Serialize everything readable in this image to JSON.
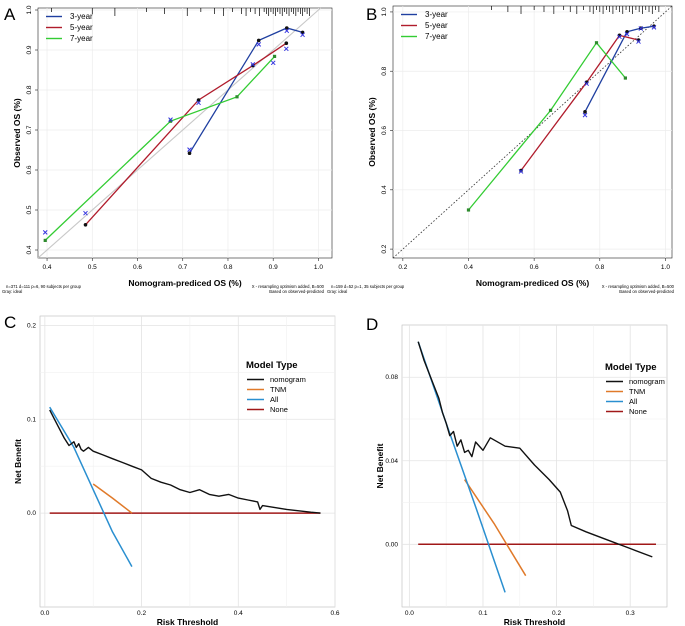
{
  "panels": {
    "A": {
      "label": "A",
      "note_left": "n=371 d=111 p=6, 90 subjects per group",
      "note_left2": "Gray: ideal",
      "note_right": "X - resampling optimism added, B=500",
      "note_right2": "Based on observed-predicted"
    },
    "B": {
      "label": "B",
      "note_left": "n=159 d=52 p=1, 35 subjects per group",
      "note_left2": "Gray: ideal",
      "note_right": "X - resampling optimism added, B=500",
      "note_right2": "Based on observed-predicted"
    },
    "C": {
      "label": "C"
    },
    "D": {
      "label": "D"
    }
  },
  "colors": {
    "y3": "#1f3fa0",
    "y5": "#b01c2c",
    "y7": "#33cc33",
    "nomogram": "#111111",
    "tnm": "#e07a2a",
    "all": "#2a8fd0",
    "none": "#a01818",
    "cross": "#3535e0",
    "ideal": "#c8c8c8",
    "grid": "#e3e3e3"
  },
  "chart_data": [
    {
      "panel": "A",
      "type": "line",
      "title": "",
      "xlabel": "Nomogram-prediced OS (%)",
      "ylabel": "Observed OS (%)",
      "xlim": [
        0.38,
        1.03
      ],
      "ylim": [
        0.38,
        1.005
      ],
      "xticks": [
        0.4,
        0.5,
        0.6,
        0.7,
        0.8,
        0.9,
        1.0
      ],
      "yticks": [
        0.4,
        0.5,
        0.6,
        0.7,
        0.8,
        0.9,
        1.0
      ],
      "legend": [
        "3-year",
        "5-year",
        "7-year"
      ],
      "legend_position": "top-left",
      "ideal_line": "solid-gray",
      "series": [
        {
          "name": "3-year",
          "color_key": "y3",
          "x": [
            0.715,
            0.868,
            0.93,
            0.965
          ],
          "y": [
            0.642,
            0.924,
            0.955,
            0.944
          ]
        },
        {
          "name": "5-year",
          "color_key": "y5",
          "x": [
            0.485,
            0.735,
            0.855,
            0.929
          ],
          "y": [
            0.463,
            0.775,
            0.861,
            0.917
          ]
        },
        {
          "name": "7-year",
          "color_key": "y7",
          "x": [
            0.396,
            0.673,
            0.82,
            0.903
          ],
          "y": [
            0.424,
            0.722,
            0.783,
            0.884
          ]
        }
      ],
      "crosses": [
        [
          0.396,
          0.444
        ],
        [
          0.485,
          0.492
        ],
        [
          0.673,
          0.726
        ],
        [
          0.715,
          0.651
        ],
        [
          0.735,
          0.768
        ],
        [
          0.855,
          0.864
        ],
        [
          0.868,
          0.914
        ],
        [
          0.9,
          0.868
        ],
        [
          0.929,
          0.903
        ],
        [
          0.93,
          0.948
        ],
        [
          0.965,
          0.938
        ]
      ],
      "rug": [
        0.41,
        0.5,
        0.55,
        0.62,
        0.66,
        0.71,
        0.74,
        0.77,
        0.79,
        0.81,
        0.83,
        0.84,
        0.85,
        0.86,
        0.87,
        0.88,
        0.885,
        0.89,
        0.895,
        0.9,
        0.905,
        0.91,
        0.915,
        0.92,
        0.925,
        0.93,
        0.935,
        0.94,
        0.945,
        0.95,
        0.955,
        0.96,
        0.965,
        0.97,
        0.975,
        0.98
      ]
    },
    {
      "panel": "B",
      "type": "line",
      "title": "",
      "xlabel": "Nomogram-prediced OS (%)",
      "ylabel": "Observed OS (%)",
      "xlim": [
        0.17,
        1.02
      ],
      "ylim": [
        0.17,
        1.02
      ],
      "xticks": [
        0.2,
        0.4,
        0.6,
        0.8,
        1.0
      ],
      "yticks": [
        0.2,
        0.4,
        0.6,
        0.8,
        1.0
      ],
      "legend": [
        "3-year",
        "5-year",
        "7-year"
      ],
      "legend_position": "top-left",
      "ideal_line": "dotted",
      "series": [
        {
          "name": "3-year",
          "color_key": "y3",
          "x": [
            0.755,
            0.883,
            0.925,
            0.965
          ],
          "y": [
            0.663,
            0.933,
            0.945,
            0.952
          ]
        },
        {
          "name": "5-year",
          "color_key": "y5",
          "x": [
            0.56,
            0.76,
            0.86,
            0.918
          ],
          "y": [
            0.465,
            0.763,
            0.921,
            0.905
          ]
        },
        {
          "name": "7-year",
          "color_key": "y7",
          "x": [
            0.4,
            0.65,
            0.79,
            0.878
          ],
          "y": [
            0.332,
            0.668,
            0.896,
            0.777
          ]
        }
      ],
      "crosses": [
        [
          0.56,
          0.462
        ],
        [
          0.755,
          0.652
        ],
        [
          0.76,
          0.758
        ],
        [
          0.86,
          0.916
        ],
        [
          0.883,
          0.925
        ],
        [
          0.918,
          0.9
        ],
        [
          0.925,
          0.944
        ],
        [
          0.965,
          0.948
        ]
      ],
      "rug": [
        0.47,
        0.52,
        0.56,
        0.6,
        0.63,
        0.66,
        0.69,
        0.71,
        0.73,
        0.75,
        0.77,
        0.78,
        0.79,
        0.8,
        0.81,
        0.82,
        0.83,
        0.84,
        0.85,
        0.86,
        0.87,
        0.88,
        0.89,
        0.9,
        0.91,
        0.92,
        0.93,
        0.94,
        0.95,
        0.96,
        0.97,
        0.98
      ]
    },
    {
      "panel": "C",
      "type": "line",
      "title": "",
      "xlabel": "Risk Threshold",
      "ylabel": "Net Benefit",
      "xlim": [
        -0.01,
        0.6
      ],
      "ylim": [
        -0.1,
        0.21
      ],
      "xticks": [
        0.0,
        0.2,
        0.4,
        0.6
      ],
      "yticks": [
        0.0,
        0.1,
        0.2
      ],
      "legend_title": "Model Type",
      "legend": [
        "nomogram",
        "TNM",
        "All",
        "None"
      ],
      "legend_position": "right",
      "series": [
        {
          "name": "nomogram",
          "color_key": "nomogram",
          "x": [
            0.01,
            0.02,
            0.03,
            0.04,
            0.05,
            0.06,
            0.065,
            0.07,
            0.075,
            0.08,
            0.09,
            0.1,
            0.12,
            0.14,
            0.16,
            0.18,
            0.2,
            0.22,
            0.24,
            0.26,
            0.28,
            0.3,
            0.32,
            0.34,
            0.36,
            0.38,
            0.4,
            0.42,
            0.44,
            0.445,
            0.45,
            0.5,
            0.55,
            0.57
          ],
          "y": [
            0.11,
            0.1,
            0.09,
            0.08,
            0.072,
            0.076,
            0.07,
            0.074,
            0.068,
            0.066,
            0.07,
            0.066,
            0.062,
            0.058,
            0.054,
            0.05,
            0.046,
            0.037,
            0.033,
            0.03,
            0.025,
            0.022,
            0.025,
            0.02,
            0.018,
            0.02,
            0.016,
            0.014,
            0.012,
            0.004,
            0.008,
            0.004,
            0.001,
            0.0
          ]
        },
        {
          "name": "TNM",
          "color_key": "tnm",
          "x": [
            0.1,
            0.14,
            0.18
          ],
          "y": [
            0.031,
            0.016,
            0.0
          ]
        },
        {
          "name": "All",
          "color_key": "all",
          "x": [
            0.01,
            0.06,
            0.1,
            0.14,
            0.18
          ],
          "y": [
            0.113,
            0.07,
            0.025,
            -0.02,
            -0.057
          ]
        },
        {
          "name": "None",
          "color_key": "none",
          "x": [
            0.01,
            0.57
          ],
          "y": [
            0.0,
            0.0
          ]
        }
      ]
    },
    {
      "panel": "D",
      "type": "line",
      "title": "",
      "xlabel": "Risk Threshold",
      "ylabel": "Net Benefit",
      "xlim": [
        -0.01,
        0.35
      ],
      "ylim": [
        -0.03,
        0.105
      ],
      "xticks": [
        0.0,
        0.1,
        0.2,
        0.3
      ],
      "yticks": [
        0.0,
        0.04,
        0.08
      ],
      "legend_title": "Model Type",
      "legend": [
        "nomogram",
        "TNM",
        "All",
        "None"
      ],
      "legend_position": "right",
      "series": [
        {
          "name": "nomogram",
          "color_key": "nomogram",
          "x": [
            0.012,
            0.02,
            0.03,
            0.04,
            0.045,
            0.05,
            0.055,
            0.06,
            0.065,
            0.07,
            0.075,
            0.08,
            0.085,
            0.09,
            0.1,
            0.11,
            0.13,
            0.15,
            0.17,
            0.19,
            0.205,
            0.215,
            0.22,
            0.24,
            0.27,
            0.3,
            0.33
          ],
          "y": [
            0.097,
            0.088,
            0.079,
            0.07,
            0.063,
            0.058,
            0.052,
            0.054,
            0.047,
            0.05,
            0.044,
            0.045,
            0.042,
            0.049,
            0.045,
            0.051,
            0.047,
            0.046,
            0.038,
            0.031,
            0.025,
            0.016,
            0.009,
            0.006,
            0.002,
            -0.002,
            -0.006
          ]
        },
        {
          "name": "TNM",
          "color_key": "tnm",
          "x": [
            0.075,
            0.115,
            0.158
          ],
          "y": [
            0.031,
            0.01,
            -0.015
          ]
        },
        {
          "name": "All",
          "color_key": "all",
          "x": [
            0.012,
            0.05,
            0.09,
            0.13
          ],
          "y": [
            0.097,
            0.058,
            0.018,
            -0.023
          ]
        },
        {
          "name": "None",
          "color_key": "none",
          "x": [
            0.012,
            0.335
          ],
          "y": [
            0.0,
            0.0
          ]
        }
      ]
    }
  ]
}
